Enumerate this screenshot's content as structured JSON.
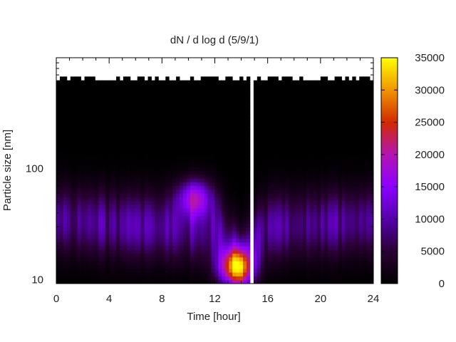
{
  "chart_data": {
    "type": "heatmap",
    "title": "dN / d log d (5/9/1)",
    "xlabel": "Time [hour]",
    "ylabel": "Particle size [nm]",
    "x_range": [
      0,
      24
    ],
    "x_ticks": [
      0,
      4,
      8,
      12,
      16,
      20,
      24
    ],
    "x_tick_labels": [
      "0",
      "4",
      "8",
      "12",
      "16",
      "20",
      "24"
    ],
    "y_scale": "log",
    "y_range": [
      9.2,
      1000
    ],
    "y_ticks": [
      10,
      100
    ],
    "y_tick_labels": [
      "10",
      "100"
    ],
    "colorbar": {
      "range": [
        0,
        35000
      ],
      "ticks": [
        0,
        5000,
        10000,
        15000,
        20000,
        25000,
        30000,
        35000
      ],
      "tick_labels": [
        "0",
        "5000",
        "10000",
        "15000",
        "20000",
        "25000",
        "30000",
        "35000"
      ],
      "palette": [
        "#000000",
        "#2a0033",
        "#5500aa",
        "#8c00ff",
        "#b414b4",
        "#d22a00",
        "#f09600",
        "#ffff00"
      ]
    },
    "missing_data_gap_hours": [
      14.55,
      15.05
    ],
    "upper_size_limit_nm": {
      "hours": [
        0,
        14.5,
        15.1,
        24
      ],
      "values_nm": [
        650,
        650,
        650,
        650
      ]
    },
    "dominant_mode_nm": {
      "hours": [
        0,
        4,
        8,
        12,
        14,
        16,
        20,
        24
      ],
      "values_nm": [
        35,
        32,
        30,
        28,
        14,
        30,
        32,
        34
      ]
    },
    "events": [
      {
        "peak_hour": 13.6,
        "peak_size_nm": 13,
        "peak_value": 27000
      },
      {
        "peak_hour": 10.5,
        "peak_size_nm": 55,
        "peak_value": 16000
      }
    ]
  }
}
